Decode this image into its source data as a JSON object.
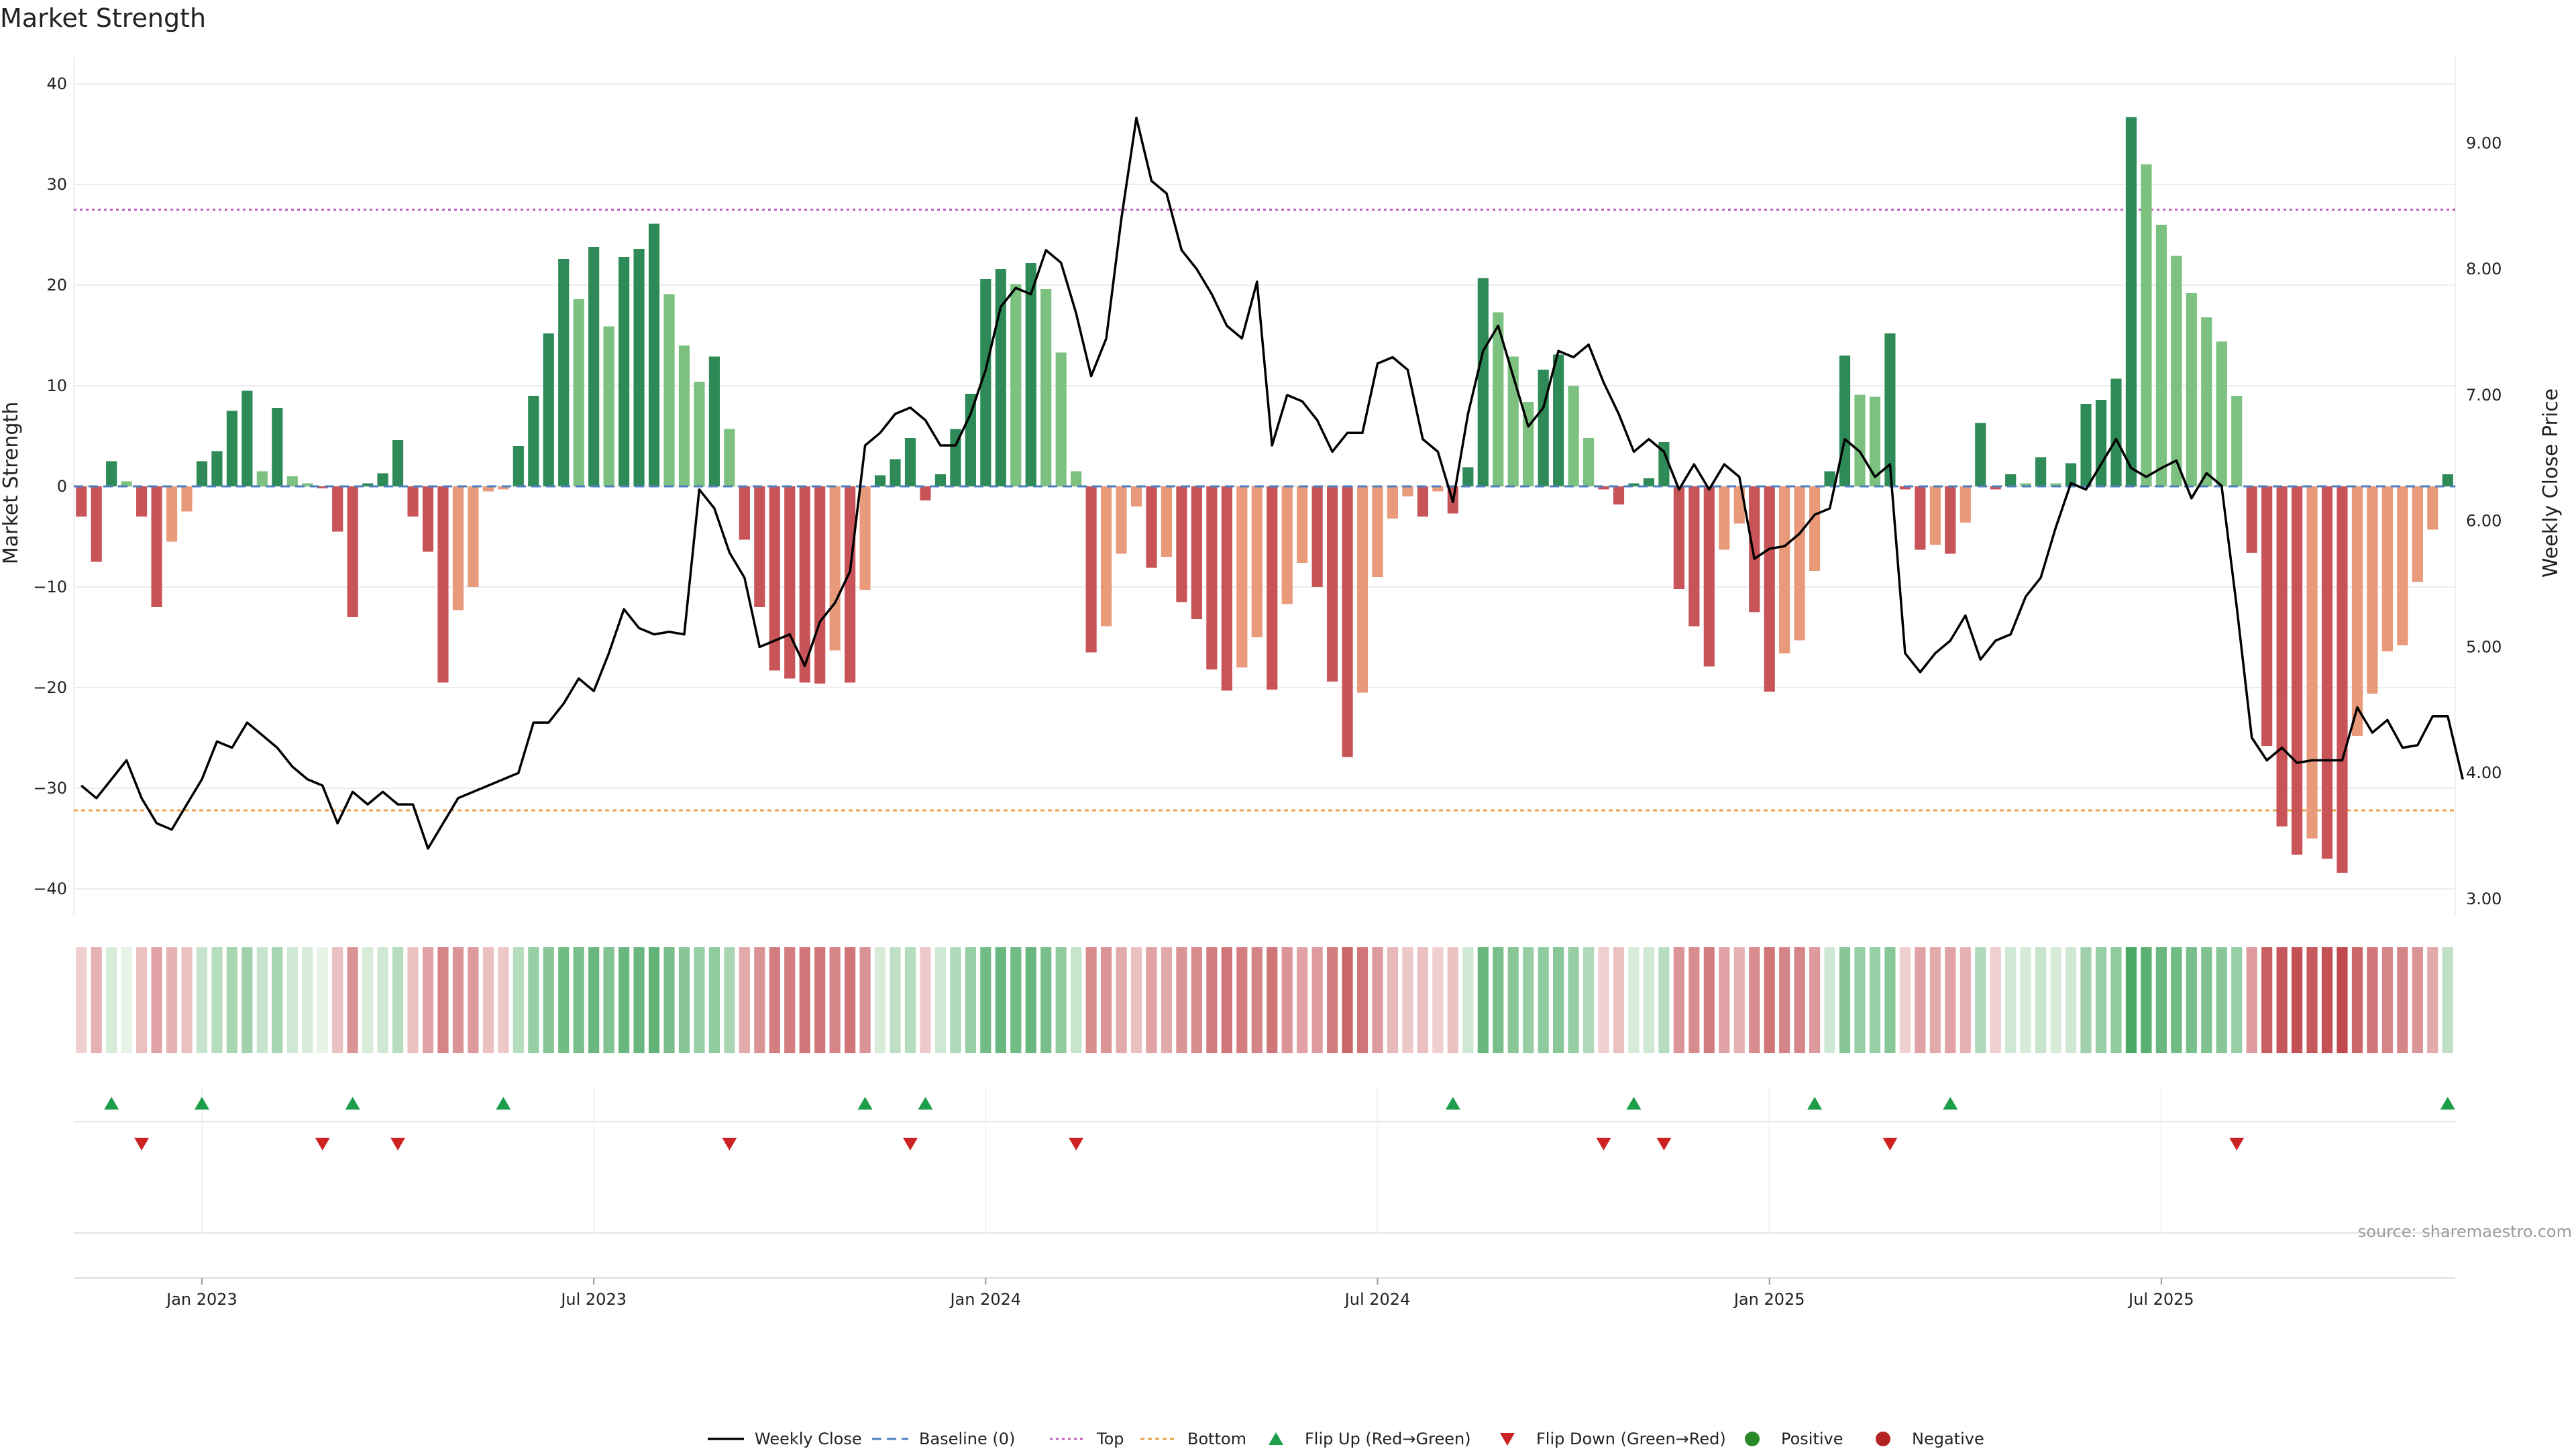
{
  "chart_data": {
    "type": "bar",
    "title": "Market Strength",
    "ylabel_left": "Market Strength",
    "ylabel_right": "Weekly Close Price",
    "ylim_left": [
      -42,
      42
    ],
    "yticks_left": [
      "40",
      "30",
      "20",
      "10",
      "0",
      "−10",
      "−20",
      "−30",
      "−40"
    ],
    "yticks_left_values": [
      40,
      30,
      20,
      10,
      0,
      -10,
      -20,
      -30,
      -40
    ],
    "ylim_right": [
      2.92,
      9.63
    ],
    "yticks_right": [
      "9.00",
      "8.00",
      "7.00",
      "6.00",
      "5.00",
      "4.00",
      "3.00"
    ],
    "yticks_right_values": [
      9,
      8,
      7,
      6,
      5,
      4,
      3
    ],
    "top_threshold": 27.5,
    "bottom_threshold": -32.2,
    "xticks": [
      "Jan 2023",
      "Jul 2023",
      "Jan 2024",
      "Jul 2024",
      "Jan 2025",
      "Jul 2025"
    ],
    "xticks_week_index": [
      8,
      34,
      60,
      86,
      112,
      138
    ],
    "market_strength": [
      -3,
      -7.5,
      2.5,
      0.5,
      -3,
      -12,
      -5.5,
      -2.5,
      2.5,
      3.5,
      7.5,
      9.5,
      1.5,
      7.8,
      1,
      0.3,
      -0.2,
      -4.5,
      -13,
      0.3,
      1.3,
      4.6,
      -3,
      -6.5,
      -19.5,
      -12.3,
      -10,
      -0.5,
      -0.3,
      4,
      9,
      15.2,
      22.6,
      18.6,
      23.8,
      15.9,
      22.8,
      23.6,
      26.1,
      19.1,
      14,
      10.4,
      12.9,
      5.7,
      -5.3,
      -12,
      -18.3,
      -19.1,
      -19.5,
      -19.6,
      -16.3,
      -19.5,
      -10.3,
      1.1,
      2.7,
      4.8,
      -1.4,
      1.2,
      5.7,
      9.2,
      20.6,
      21.6,
      20.1,
      22.2,
      19.6,
      13.3,
      1.5,
      -16.5,
      -13.9,
      -6.7,
      -2,
      -8.1,
      -7,
      -11.5,
      -13.2,
      -18.2,
      -20.3,
      -18,
      -15,
      -20.2,
      -11.7,
      -7.6,
      -10,
      -19.4,
      -26.9,
      -20.5,
      -9,
      -3.2,
      -1,
      -3,
      -0.5,
      -2.7,
      1.9,
      20.7,
      17.3,
      12.9,
      8.4,
      11.6,
      13.1,
      10,
      4.8,
      -0.3,
      -1.8,
      0.3,
      0.8,
      4.4,
      -10.2,
      -13.9,
      -17.9,
      -6.3,
      -3.7,
      -12.5,
      -20.4,
      -16.6,
      -15.3,
      -8.4,
      1.5,
      13,
      9.1,
      8.9,
      15.2,
      -0.3,
      -6.3,
      -5.8,
      -6.7,
      -3.6,
      6.3,
      -0.3,
      1.2,
      0.3,
      2.9,
      0.3,
      2.3,
      8.2,
      8.6,
      10.7,
      36.7,
      32,
      26,
      22.9,
      19.2,
      16.8,
      14.4,
      9,
      -6.6,
      -25.8,
      -33.8,
      -36.6,
      -35,
      -37,
      -38.4,
      -24.8,
      -20.6,
      -16.4,
      -15.8,
      -9.5,
      -4.3,
      1.2
    ],
    "weekly_close": [
      3.9,
      3.8,
      3.95,
      4.1,
      3.8,
      3.6,
      3.55,
      3.75,
      3.95,
      4.25,
      4.2,
      4.4,
      4.3,
      4.2,
      4.05,
      3.95,
      3.9,
      3.6,
      3.85,
      3.75,
      3.85,
      3.75,
      3.75,
      3.4,
      3.6,
      3.8,
      3.85,
      3.9,
      3.95,
      4,
      4.4,
      4.4,
      4.55,
      4.75,
      4.65,
      4.95,
      5.3,
      5.15,
      5.1,
      5.12,
      5.1,
      6.25,
      6.1,
      5.75,
      5.55,
      5,
      5.05,
      5.1,
      4.85,
      5.2,
      5.35,
      5.6,
      6.6,
      6.7,
      6.85,
      6.9,
      6.8,
      6.6,
      6.6,
      6.85,
      7.2,
      7.7,
      7.85,
      7.8,
      8.15,
      8.05,
      7.65,
      7.15,
      7.45,
      8.4,
      9.2,
      8.7,
      8.6,
      8.15,
      8,
      7.8,
      7.55,
      7.45,
      7.9,
      6.6,
      7,
      6.95,
      6.8,
      6.55,
      6.7,
      6.7,
      7.25,
      7.3,
      7.2,
      6.65,
      6.55,
      6.15,
      6.85,
      7.35,
      7.55,
      7.15,
      6.75,
      6.9,
      7.35,
      7.3,
      7.4,
      7.1,
      6.85,
      6.55,
      6.65,
      6.55,
      6.25,
      6.45,
      6.25,
      6.45,
      6.35,
      5.7,
      5.78,
      5.8,
      5.9,
      6.05,
      6.1,
      6.65,
      6.55,
      6.35,
      6.45,
      4.95,
      4.8,
      4.95,
      5.05,
      5.25,
      4.9,
      5.05,
      5.1,
      5.4,
      5.55,
      5.95,
      6.3,
      6.25,
      6.45,
      6.65,
      6.42,
      6.35,
      6.42,
      6.48,
      6.18,
      6.38,
      6.28,
      5.32,
      4.28,
      4.1,
      4.2,
      4.08,
      4.1,
      4.1,
      4.1,
      4.52,
      4.32,
      4.42,
      4.2,
      4.22,
      4.45,
      4.45,
      3.95
    ],
    "thermometer_intensity": [
      -0.1,
      -0.3,
      0.1,
      0,
      -0.2,
      -0.4,
      -0.3,
      -0.2,
      0.2,
      0.3,
      0.4,
      0.45,
      0.2,
      0.4,
      0.15,
      0.1,
      0,
      -0.2,
      -0.5,
      0.1,
      0.15,
      0.3,
      -0.2,
      -0.4,
      -0.6,
      -0.5,
      -0.45,
      -0.2,
      -0.15,
      0.3,
      0.5,
      0.6,
      0.75,
      0.7,
      0.8,
      0.65,
      0.8,
      0.8,
      0.85,
      0.7,
      0.6,
      0.5,
      0.55,
      0.4,
      -0.35,
      -0.5,
      -0.65,
      -0.65,
      -0.7,
      -0.7,
      -0.6,
      -0.7,
      -0.5,
      0.1,
      0.25,
      0.3,
      -0.15,
      0.15,
      0.35,
      0.5,
      0.75,
      0.8,
      0.75,
      0.8,
      0.7,
      0.55,
      0.2,
      -0.55,
      -0.5,
      -0.35,
      -0.2,
      -0.4,
      -0.35,
      -0.5,
      -0.55,
      -0.65,
      -0.7,
      -0.65,
      -0.6,
      -0.7,
      -0.5,
      -0.4,
      -0.45,
      -0.65,
      -0.8,
      -0.7,
      -0.45,
      -0.25,
      -0.15,
      -0.2,
      -0.1,
      -0.2,
      0.15,
      0.8,
      0.7,
      0.6,
      0.5,
      0.55,
      0.6,
      0.5,
      0.35,
      -0.1,
      -0.2,
      0.1,
      0.15,
      0.3,
      -0.5,
      -0.55,
      -0.65,
      -0.4,
      -0.3,
      -0.55,
      -0.7,
      -0.6,
      -0.6,
      -0.45,
      0.15,
      0.6,
      0.5,
      0.5,
      0.6,
      -0.1,
      -0.4,
      -0.35,
      -0.4,
      -0.3,
      0.35,
      -0.1,
      0.15,
      0.1,
      0.2,
      0.1,
      0.15,
      0.45,
      0.5,
      0.55,
      1,
      0.9,
      0.8,
      0.75,
      0.7,
      0.65,
      0.6,
      0.5,
      -0.45,
      -0.85,
      -0.9,
      -0.95,
      -0.9,
      -0.95,
      -1,
      -0.8,
      -0.7,
      -0.6,
      -0.6,
      -0.5,
      -0.35,
      0.25
    ],
    "flip_up_week_index": [
      2,
      8,
      18,
      28,
      52,
      56,
      91,
      103,
      115,
      124,
      157
    ],
    "flip_down_week_index": [
      4,
      16,
      21,
      43,
      55,
      66,
      101,
      105,
      120,
      143
    ],
    "legend": [
      "Weekly Close",
      "Baseline (0)",
      "Top",
      "Bottom",
      "Flip Up (Red→Green)",
      "Flip Down (Green→Red)",
      "Positive",
      "Negative"
    ],
    "source": "source: sharemaestro.com",
    "colors": {
      "strong_positive": "#2e8b57",
      "weak_positive": "#7cc17f",
      "strong_negative": "#c95458",
      "weak_negative": "#e89a7a",
      "close_line": "#000000",
      "baseline": "#4d7ec2",
      "top_line": "#c05cc0",
      "bottom_line": "#e8a04b",
      "flip_up": "#1e9e4a",
      "flip_down": "#cc2222",
      "positive_dot": "#2a8a2a",
      "negative_dot": "#b22222",
      "grid": "#ececec"
    }
  }
}
